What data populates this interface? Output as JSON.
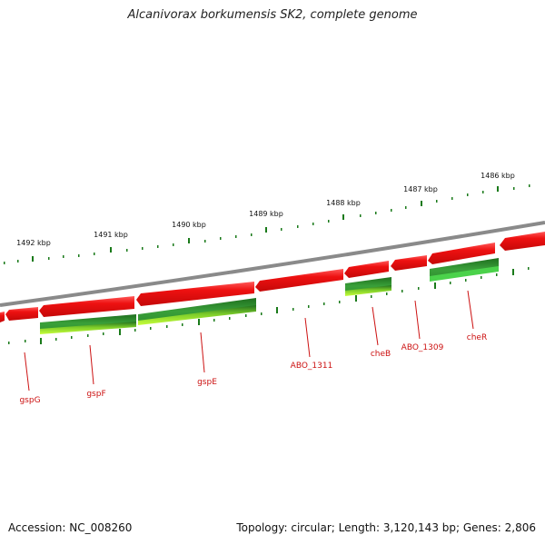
{
  "title": "Alcanivorax borkumensis SK2, complete genome",
  "footer": {
    "accession": "Accession: NC_008260",
    "topology": "Topology: circular; Length: 3,120,143 bp; Genes: 2,806"
  },
  "scale_labels": [
    {
      "text": "1492 kbp"
    },
    {
      "text": "1491 kbp"
    },
    {
      "text": "1490 kbp"
    },
    {
      "text": "1489 kbp"
    },
    {
      "text": "1488 kbp"
    },
    {
      "text": "1487 kbp"
    },
    {
      "text": "1486 kbp"
    }
  ],
  "gene_labels": [
    {
      "text": "gspG"
    },
    {
      "text": "gspF"
    },
    {
      "text": "gspE"
    },
    {
      "text": "ABO_1311"
    },
    {
      "text": "cheB"
    },
    {
      "text": "ABO_1309"
    },
    {
      "text": "cheR"
    }
  ],
  "colors": {
    "backbone": "#8a8a8a",
    "cds_forward": "#ee1111",
    "cds_reverse": "#2f8f2f",
    "cds_reverse_light": "#99e61a",
    "tick": "#1a7a1a",
    "label": "#cc1111"
  }
}
